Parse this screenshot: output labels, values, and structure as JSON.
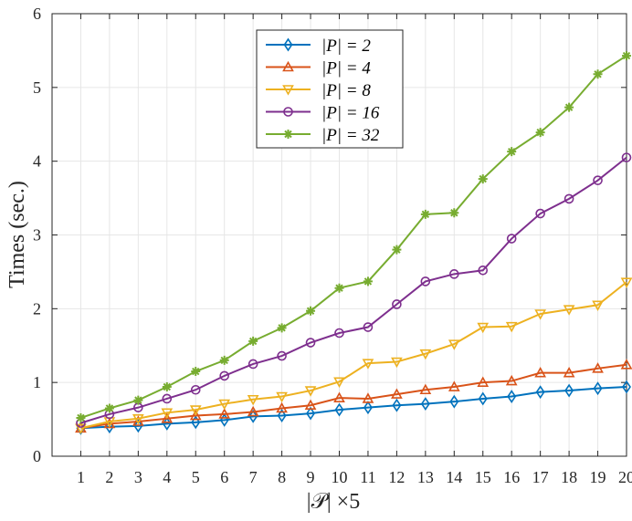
{
  "chart_data": {
    "type": "line",
    "xlabel": "|𝒫| ×5",
    "ylabel": "Times (sec.)",
    "x": [
      1,
      2,
      3,
      4,
      5,
      6,
      7,
      8,
      9,
      10,
      11,
      12,
      13,
      14,
      15,
      16,
      17,
      18,
      19,
      20
    ],
    "xlim": [
      0,
      20
    ],
    "ylim": [
      0,
      6
    ],
    "yticks": [
      0,
      1,
      2,
      3,
      4,
      5,
      6
    ],
    "grid": true,
    "legend_position": "top-center",
    "series": [
      {
        "name": "|P| = 2",
        "color": "#0072BD",
        "marker": "diamond",
        "values": [
          0.38,
          0.4,
          0.41,
          0.44,
          0.46,
          0.49,
          0.54,
          0.55,
          0.58,
          0.63,
          0.66,
          0.69,
          0.71,
          0.74,
          0.78,
          0.81,
          0.87,
          0.89,
          0.92,
          0.94
        ]
      },
      {
        "name": "|P| = 4",
        "color": "#D95319",
        "marker": "triangle-up",
        "values": [
          0.38,
          0.44,
          0.47,
          0.51,
          0.55,
          0.57,
          0.6,
          0.65,
          0.69,
          0.79,
          0.78,
          0.84,
          0.9,
          0.94,
          1.0,
          1.02,
          1.13,
          1.13,
          1.19,
          1.24
        ]
      },
      {
        "name": "|P| = 8",
        "color": "#EDB120",
        "marker": "triangle-down",
        "values": [
          0.38,
          0.47,
          0.51,
          0.59,
          0.63,
          0.71,
          0.77,
          0.81,
          0.89,
          1.01,
          1.26,
          1.28,
          1.39,
          1.52,
          1.75,
          1.76,
          1.93,
          1.99,
          2.05,
          2.36
        ]
      },
      {
        "name": "|P| = 16",
        "color": "#7E2F8E",
        "marker": "circle",
        "values": [
          0.45,
          0.57,
          0.66,
          0.78,
          0.9,
          1.09,
          1.25,
          1.36,
          1.54,
          1.67,
          1.75,
          2.06,
          2.37,
          2.47,
          2.52,
          2.95,
          3.29,
          3.49,
          3.74,
          4.05
        ]
      },
      {
        "name": "|P| = 32",
        "color": "#77AC30",
        "marker": "asterisk",
        "values": [
          0.52,
          0.65,
          0.76,
          0.94,
          1.15,
          1.3,
          1.56,
          1.74,
          1.97,
          2.28,
          2.37,
          2.8,
          3.28,
          3.3,
          3.76,
          4.13,
          4.39,
          4.73,
          5.18,
          5.43
        ]
      }
    ]
  }
}
